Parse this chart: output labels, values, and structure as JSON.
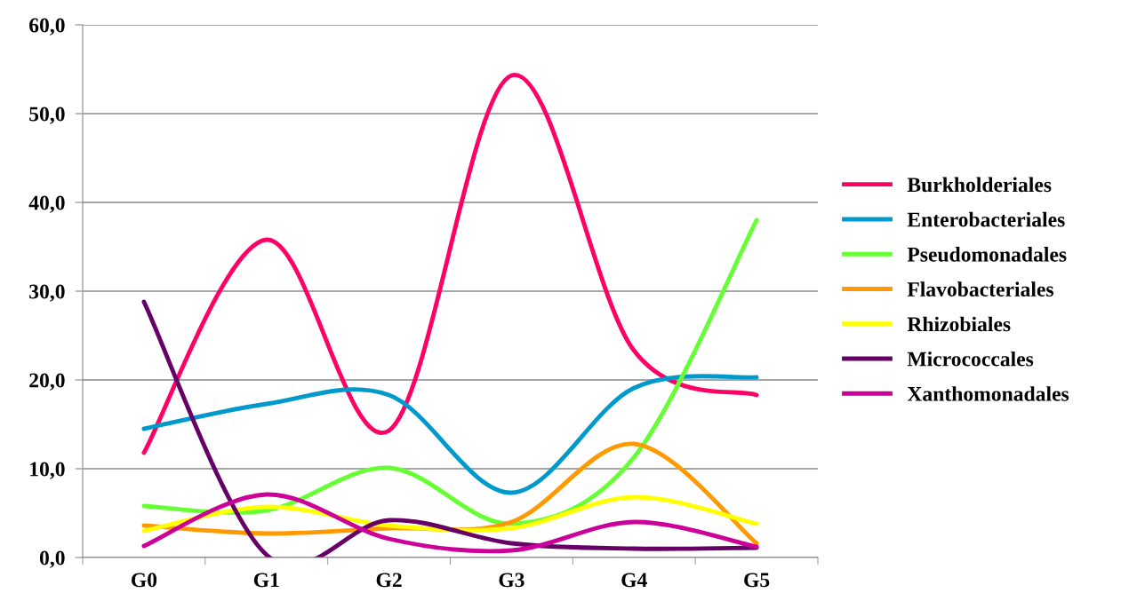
{
  "chart_data": {
    "type": "line",
    "categories": [
      "G0",
      "G1",
      "G2",
      "G3",
      "G4",
      "G5"
    ],
    "ylim": [
      0,
      60
    ],
    "yticks": [
      {
        "value": 0,
        "label": "0,0"
      },
      {
        "value": 10,
        "label": "10,0"
      },
      {
        "value": 20,
        "label": "20,0"
      },
      {
        "value": 30,
        "label": "30,0"
      },
      {
        "value": 40,
        "label": "40,0"
      },
      {
        "value": 50,
        "label": "50,0"
      },
      {
        "value": 60,
        "label": "60,0"
      }
    ],
    "grid": "y",
    "legend": "right",
    "marker": "none",
    "line_style": "solid",
    "series": [
      {
        "name": "Burkholderiales",
        "color": "#ff0066",
        "values": [
          11.8,
          35.8,
          14.3,
          54.3,
          23.3,
          18.3
        ]
      },
      {
        "name": "Enterobacteriales",
        "color": "#0099cc",
        "values": [
          14.5,
          17.3,
          18.3,
          7.3,
          19.1,
          20.3
        ]
      },
      {
        "name": "Pseudomonadales",
        "color": "#66ff33",
        "values": [
          5.8,
          5.3,
          10.1,
          3.8,
          11.3,
          38.0
        ]
      },
      {
        "name": "Flavobacteriales",
        "color": "#ff9900",
        "values": [
          3.6,
          2.7,
          3.3,
          4.0,
          12.8,
          1.6
        ]
      },
      {
        "name": "Rhizobiales",
        "color": "#ffff00",
        "values": [
          3.0,
          5.7,
          3.6,
          3.3,
          6.8,
          3.8
        ]
      },
      {
        "name": "Micrococcales",
        "color": "#660066",
        "values": [
          28.8,
          0.3,
          4.2,
          1.6,
          1.0,
          1.1
        ]
      },
      {
        "name": "Xanthomonadales",
        "color": "#cc0099",
        "values": [
          1.3,
          7.1,
          2.1,
          0.8,
          4.0,
          1.2
        ]
      }
    ]
  }
}
